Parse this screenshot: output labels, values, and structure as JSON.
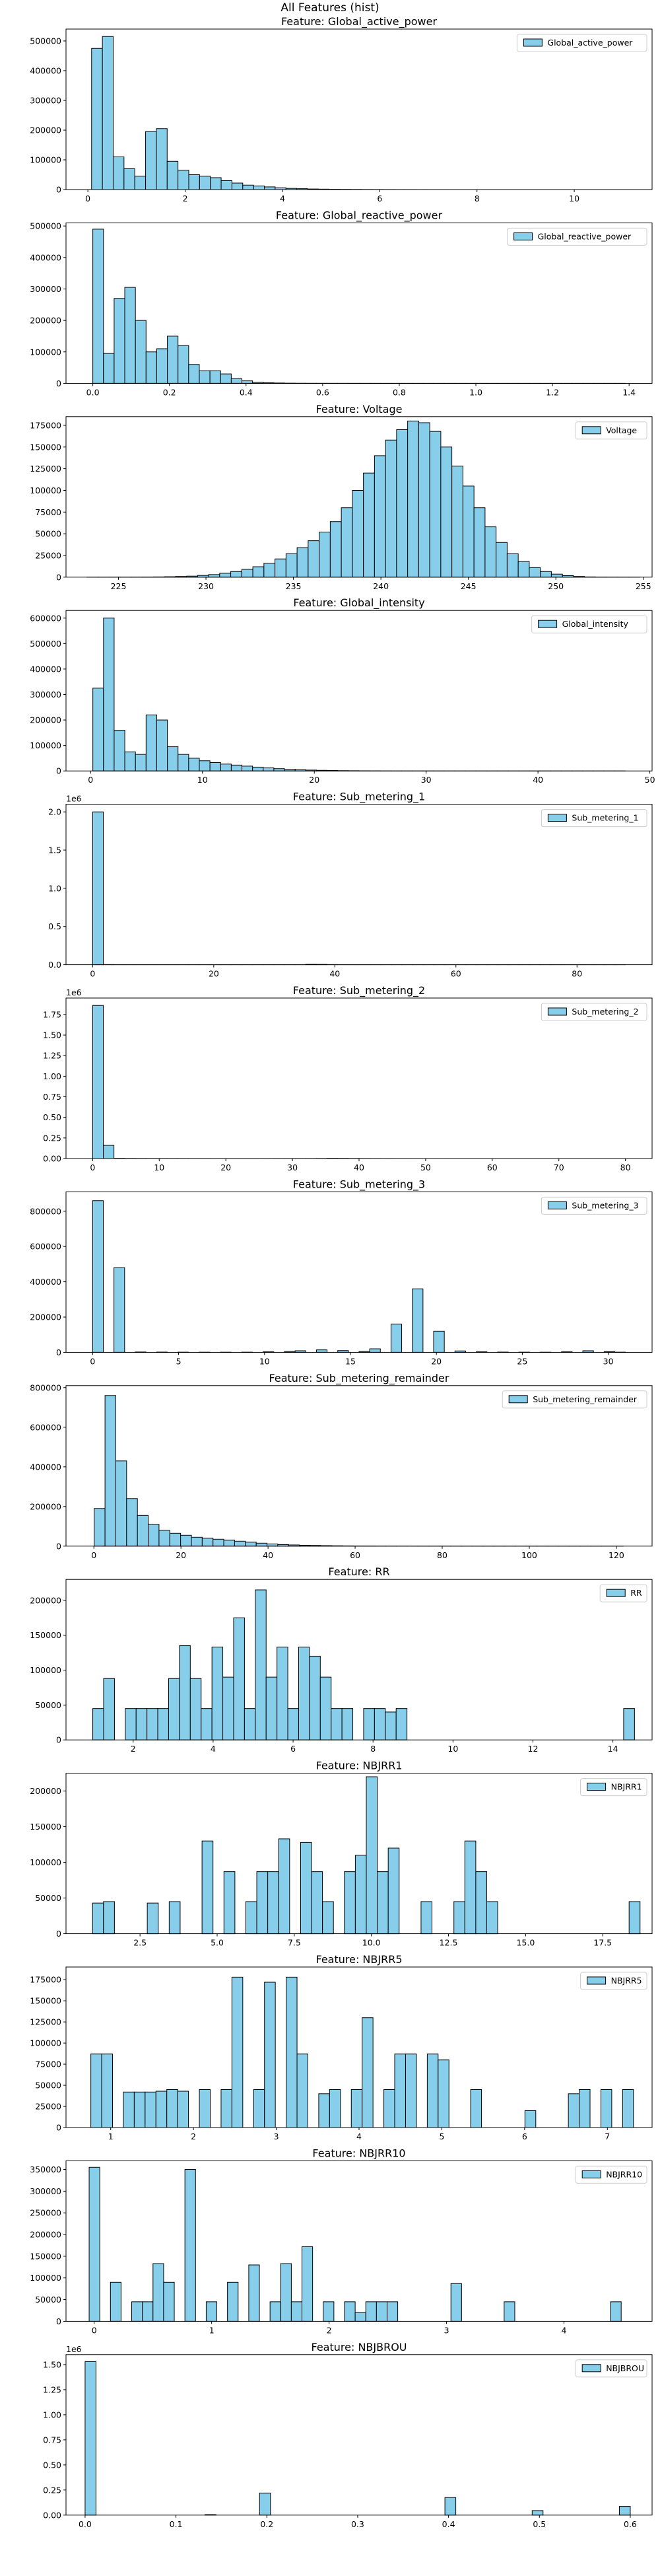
{
  "suptitle": "All Features (hist)",
  "colors": {
    "bar_fill": "#87ceeb",
    "bar_edge": "#000000",
    "axis": "#000000"
  },
  "chart_data": [
    {
      "type": "bar",
      "title": "Feature: Global_active_power",
      "legend": "Global_active_power",
      "legend_loc": "upper right",
      "xlim": [
        -0.45,
        11.6
      ],
      "ylim": [
        0,
        540000
      ],
      "xticks": [
        0,
        2,
        4,
        6,
        8,
        10
      ],
      "xtick_labels": [
        "0",
        "2",
        "4",
        "6",
        "8",
        "10"
      ],
      "yticks": [
        0,
        100000,
        200000,
        300000,
        400000,
        500000
      ],
      "ytick_labels": [
        "0",
        "100000",
        "200000",
        "300000",
        "400000",
        "500000"
      ],
      "y_offset_label": "",
      "bin_start": 0.076,
      "bin_width": 0.222,
      "counts": [
        475000,
        515000,
        110000,
        70000,
        45000,
        195000,
        205000,
        95000,
        65000,
        50000,
        45000,
        40000,
        30000,
        22000,
        15000,
        12000,
        9000,
        6000,
        4000,
        3000,
        2000,
        1500,
        1000,
        800,
        600,
        400,
        300,
        200,
        150,
        100,
        80,
        60,
        40,
        30,
        20,
        15,
        10,
        8,
        6,
        4,
        3,
        2,
        2,
        1,
        1,
        1,
        1,
        1,
        1,
        1
      ]
    },
    {
      "type": "bar",
      "title": "Feature: Global_reactive_power",
      "legend": "Global_reactive_power",
      "legend_loc": "upper right",
      "xlim": [
        -0.07,
        1.46
      ],
      "ylim": [
        0,
        510000
      ],
      "xticks": [
        0,
        0.2,
        0.4,
        0.6,
        0.8,
        1.0,
        1.2,
        1.4
      ],
      "xtick_labels": [
        "0.0",
        "0.2",
        "0.4",
        "0.6",
        "0.8",
        "1.0",
        "1.2",
        "1.4"
      ],
      "yticks": [
        0,
        100000,
        200000,
        300000,
        400000,
        500000
      ],
      "ytick_labels": [
        "0",
        "100000",
        "200000",
        "300000",
        "400000",
        "500000"
      ],
      "y_offset_label": "",
      "bin_start": 0.0,
      "bin_width": 0.0278,
      "counts": [
        490000,
        95000,
        270000,
        305000,
        200000,
        100000,
        110000,
        150000,
        120000,
        60000,
        40000,
        40000,
        30000,
        15000,
        8000,
        4000,
        2000,
        1200,
        600,
        300,
        200,
        120,
        80,
        60,
        40,
        30,
        20,
        15,
        10,
        8,
        6,
        5,
        4,
        3,
        3,
        2,
        2,
        2,
        1,
        1,
        1,
        1,
        1,
        1,
        1,
        1,
        1,
        1,
        1,
        1
      ]
    },
    {
      "type": "bar",
      "title": "Feature: Voltage",
      "legend": "Voltage",
      "legend_loc": "upper right",
      "xlim": [
        222.0,
        255.5
      ],
      "ylim": [
        0,
        185000
      ],
      "xticks": [
        225,
        230,
        235,
        240,
        245,
        250,
        255
      ],
      "xtick_labels": [
        "225",
        "230",
        "235",
        "240",
        "245",
        "250",
        "255"
      ],
      "yticks": [
        0,
        25000,
        50000,
        75000,
        100000,
        125000,
        150000,
        175000
      ],
      "ytick_labels": [
        "0",
        "25000",
        "50000",
        "75000",
        "100000",
        "125000",
        "150000",
        "175000"
      ],
      "y_offset_label": "",
      "bin_start": 223.2,
      "bin_width": 0.632,
      "counts": [
        20,
        30,
        50,
        80,
        120,
        200,
        300,
        500,
        800,
        1200,
        2000,
        3000,
        4500,
        6500,
        9000,
        12000,
        16000,
        21000,
        27000,
        34000,
        42000,
        52000,
        64000,
        80000,
        100000,
        120000,
        140000,
        158000,
        170000,
        180000,
        178000,
        168000,
        150000,
        128000,
        105000,
        80000,
        58000,
        40000,
        27000,
        18000,
        11000,
        6500,
        3500,
        1800,
        800,
        300,
        120,
        50,
        20,
        10
      ]
    },
    {
      "type": "bar",
      "title": "Feature: Global_intensity",
      "legend": "Global_intensity",
      "legend_loc": "upper right",
      "xlim": [
        -2.2,
        50.2
      ],
      "ylim": [
        0,
        630000
      ],
      "xticks": [
        0,
        10,
        20,
        30,
        40,
        50
      ],
      "xtick_labels": [
        "0",
        "10",
        "20",
        "30",
        "40",
        "50"
      ],
      "yticks": [
        0,
        100000,
        200000,
        300000,
        400000,
        500000,
        600000
      ],
      "ytick_labels": [
        "0",
        "100000",
        "200000",
        "300000",
        "400000",
        "500000",
        "600000"
      ],
      "y_offset_label": "",
      "bin_start": 0.2,
      "bin_width": 0.952,
      "counts": [
        325000,
        600000,
        160000,
        75000,
        65000,
        220000,
        200000,
        95000,
        65000,
        50000,
        40000,
        33000,
        27000,
        23000,
        19000,
        15000,
        12000,
        9000,
        7000,
        5000,
        3500,
        2500,
        1800,
        1200,
        900,
        600,
        450,
        300,
        200,
        150,
        100,
        80,
        60,
        40,
        30,
        20,
        15,
        10,
        8,
        6,
        4,
        3,
        2,
        2,
        1,
        1,
        1,
        1,
        1,
        1
      ]
    },
    {
      "type": "bar",
      "title": "Feature: Sub_metering_1",
      "legend": "Sub_metering_1",
      "legend_loc": "upper right",
      "xlim": [
        -4.4,
        92.4
      ],
      "ylim": [
        0,
        2100000
      ],
      "xticks": [
        0,
        20,
        40,
        60,
        80
      ],
      "xtick_labels": [
        "0",
        "20",
        "40",
        "60",
        "80"
      ],
      "yticks": [
        0,
        500000,
        1000000,
        1500000,
        2000000
      ],
      "ytick_labels": [
        "0.0",
        "0.5",
        "1.0",
        "1.5",
        "2.0"
      ],
      "y_offset_label": "1e6",
      "bin_start": 0.0,
      "bin_width": 1.76,
      "counts": [
        2000000,
        2000,
        800,
        600,
        500,
        400,
        300,
        300,
        200,
        200,
        200,
        200,
        300,
        400,
        500,
        600,
        800,
        700,
        600,
        500,
        6000,
        5000,
        2000,
        800,
        400,
        200,
        150,
        100,
        80,
        60,
        50,
        40,
        30,
        25,
        20,
        15,
        12,
        10,
        8,
        6,
        5,
        4,
        3,
        3,
        2,
        2,
        2,
        1,
        1,
        1
      ]
    },
    {
      "type": "bar",
      "title": "Feature: Sub_metering_2",
      "legend": "Sub_metering_2",
      "legend_loc": "upper right",
      "xlim": [
        -4.0,
        84.0
      ],
      "ylim": [
        0,
        1950000
      ],
      "xticks": [
        0,
        10,
        20,
        30,
        40,
        50,
        60,
        70,
        80
      ],
      "xtick_labels": [
        "0",
        "10",
        "20",
        "30",
        "40",
        "50",
        "60",
        "70",
        "80"
      ],
      "yticks": [
        0,
        250000,
        500000,
        750000,
        1000000,
        1250000,
        1500000,
        1750000
      ],
      "ytick_labels": [
        "0.00",
        "0.25",
        "0.50",
        "0.75",
        "1.00",
        "1.25",
        "1.50",
        "1.75"
      ],
      "y_offset_label": "1e6",
      "bin_start": 0.0,
      "bin_width": 1.6,
      "counts": [
        1860000,
        160000,
        3000,
        2000,
        1500,
        1200,
        1000,
        900,
        800,
        700,
        600,
        500,
        500,
        400,
        400,
        400,
        500,
        600,
        700,
        800,
        900,
        1500,
        3000,
        2500,
        1500,
        900,
        600,
        400,
        300,
        200,
        150,
        120,
        100,
        80,
        60,
        50,
        40,
        30,
        25,
        20,
        15,
        12,
        10,
        8,
        6,
        5,
        4,
        3,
        2,
        1
      ]
    },
    {
      "type": "bar",
      "title": "Feature: Sub_metering_3",
      "legend": "Sub_metering_3",
      "legend_loc": "upper right",
      "xlim": [
        -1.55,
        32.55
      ],
      "ylim": [
        0,
        910000
      ],
      "xticks": [
        0,
        5,
        10,
        15,
        20,
        25,
        30
      ],
      "xtick_labels": [
        "0",
        "5",
        "10",
        "15",
        "20",
        "25",
        "30"
      ],
      "yticks": [
        0,
        200000,
        400000,
        600000,
        800000
      ],
      "ytick_labels": [
        "0",
        "200000",
        "400000",
        "600000",
        "800000"
      ],
      "y_offset_label": "",
      "bin_start": 0.0,
      "bin_width": 0.62,
      "counts": [
        860000,
        0,
        480000,
        0,
        2000,
        0,
        1500,
        0,
        1000,
        0,
        800,
        0,
        800,
        0,
        1000,
        0,
        3000,
        0,
        5000,
        9000,
        0,
        14000,
        0,
        10000,
        0,
        5000,
        20000,
        0,
        160000,
        0,
        360000,
        0,
        120000,
        0,
        8000,
        0,
        3000,
        0,
        1500,
        0,
        1000,
        0,
        800,
        0,
        3000,
        0,
        9000,
        0,
        4000,
        1000
      ]
    },
    {
      "type": "bar",
      "title": "Feature: Sub_metering_remainder",
      "legend": "Sub_metering_remainder",
      "legend_loc": "upper right",
      "xlim": [
        -6.4,
        128.2
      ],
      "ylim": [
        0,
        810000
      ],
      "xticks": [
        0,
        20,
        40,
        60,
        80,
        100,
        120
      ],
      "xtick_labels": [
        "0",
        "20",
        "40",
        "60",
        "80",
        "100",
        "120"
      ],
      "yticks": [
        0,
        200000,
        400000,
        600000,
        800000
      ],
      "ytick_labels": [
        "0",
        "200000",
        "400000",
        "600000",
        "800000"
      ],
      "y_offset_label": "",
      "bin_start": -2.4,
      "bin_width": 2.48,
      "counts": [
        0,
        190000,
        760000,
        430000,
        240000,
        155000,
        110000,
        80000,
        65000,
        55000,
        45000,
        40000,
        35000,
        30000,
        25000,
        20000,
        15000,
        11000,
        8000,
        6000,
        4500,
        3500,
        2500,
        1800,
        1300,
        900,
        700,
        500,
        400,
        300,
        200,
        150,
        120,
        100,
        80,
        60,
        40,
        30,
        20,
        15,
        10,
        8,
        6,
        4,
        3,
        2,
        2,
        1,
        1,
        1
      ]
    },
    {
      "type": "bar",
      "title": "Feature: RR",
      "legend": "RR",
      "legend_loc": "upper right",
      "xlim": [
        0.32,
        14.98
      ],
      "ylim": [
        0,
        230000
      ],
      "xticks": [
        2,
        4,
        6,
        8,
        10,
        12,
        14
      ],
      "xtick_labels": [
        "2",
        "4",
        "6",
        "8",
        "10",
        "12",
        "14"
      ],
      "yticks": [
        0,
        50000,
        100000,
        150000,
        200000
      ],
      "ytick_labels": [
        "0",
        "50000",
        "100000",
        "150000",
        "200000"
      ],
      "y_offset_label": "",
      "bin_start": 0.99,
      "bin_width": 0.271,
      "counts": [
        45000,
        88000,
        0,
        45000,
        45000,
        45000,
        45000,
        88000,
        135000,
        88000,
        45000,
        133000,
        90000,
        175000,
        45000,
        215000,
        90000,
        133000,
        45000,
        133000,
        120000,
        90000,
        45000,
        45000,
        0,
        45000,
        45000,
        40000,
        45000,
        0,
        0,
        0,
        0,
        0,
        0,
        0,
        0,
        0,
        0,
        0,
        0,
        0,
        0,
        0,
        0,
        0,
        0,
        0,
        0,
        45000
      ]
    },
    {
      "type": "bar",
      "title": "Feature: NBJRR1",
      "legend": "NBJRR1",
      "legend_loc": "upper right",
      "xlim": [
        0.1,
        19.1
      ],
      "ylim": [
        0,
        225000
      ],
      "xticks": [
        2.5,
        5.0,
        7.5,
        10.0,
        12.5,
        15.0,
        17.5
      ],
      "xtick_labels": [
        "2.5",
        "5.0",
        "7.5",
        "10.0",
        "12.5",
        "15.0",
        "17.5"
      ],
      "yticks": [
        0,
        50000,
        100000,
        150000,
        200000
      ],
      "ytick_labels": [
        "0",
        "50000",
        "100000",
        "150000",
        "200000"
      ],
      "y_offset_label": "",
      "bin_start": 0.96,
      "bin_width": 0.355,
      "counts": [
        43000,
        45000,
        0,
        0,
        0,
        43000,
        0,
        45000,
        0,
        0,
        130000,
        0,
        87000,
        0,
        45000,
        87000,
        87000,
        133000,
        0,
        128000,
        87000,
        45000,
        0,
        87000,
        110000,
        220000,
        87000,
        120000,
        0,
        0,
        45000,
        0,
        0,
        45000,
        130000,
        87000,
        45000,
        0,
        0,
        0,
        0,
        0,
        0,
        0,
        0,
        0,
        0,
        0,
        0,
        45000
      ]
    },
    {
      "type": "bar",
      "title": "Feature: NBJRR5",
      "legend": "NBJRR5",
      "legend_loc": "upper right",
      "xlim": [
        0.46,
        7.54
      ],
      "ylim": [
        0,
        190000
      ],
      "xticks": [
        1,
        2,
        3,
        4,
        5,
        6,
        7
      ],
      "xtick_labels": [
        "1",
        "2",
        "3",
        "4",
        "5",
        "6",
        "7"
      ],
      "yticks": [
        0,
        25000,
        50000,
        75000,
        100000,
        125000,
        150000,
        175000
      ],
      "ytick_labels": [
        "0",
        "25000",
        "50000",
        "75000",
        "100000",
        "125000",
        "150000",
        "175000"
      ],
      "y_offset_label": "",
      "bin_start": 0.76,
      "bin_width": 0.1311,
      "counts": [
        87000,
        87000,
        0,
        42000,
        42000,
        42000,
        43000,
        45000,
        43000,
        0,
        45000,
        0,
        45000,
        178000,
        0,
        45000,
        172000,
        0,
        178000,
        87000,
        0,
        40000,
        45000,
        0,
        45000,
        130000,
        0,
        45000,
        87000,
        87000,
        0,
        87000,
        80000,
        0,
        0,
        45000,
        0,
        0,
        0,
        0,
        20000,
        0,
        0,
        0,
        40000,
        45000,
        0,
        45000,
        0,
        45000
      ]
    },
    {
      "type": "bar",
      "title": "Feature: NBJRR10",
      "legend": "NBJRR10",
      "legend_loc": "upper right",
      "xlim": [
        -0.24,
        4.75
      ],
      "ylim": [
        0,
        370000
      ],
      "xticks": [
        0,
        1,
        2,
        3,
        4
      ],
      "xtick_labels": [
        "0",
        "1",
        "2",
        "3",
        "4"
      ],
      "yticks": [
        0,
        50000,
        100000,
        150000,
        200000,
        250000,
        300000,
        350000
      ],
      "ytick_labels": [
        "0",
        "50000",
        "100000",
        "150000",
        "200000",
        "250000",
        "300000",
        "350000"
      ],
      "y_offset_label": "",
      "bin_start": -0.043,
      "bin_width": 0.0906,
      "counts": [
        355000,
        0,
        90000,
        0,
        45000,
        45000,
        133000,
        90000,
        0,
        350000,
        0,
        45000,
        0,
        90000,
        0,
        130000,
        0,
        45000,
        133000,
        45000,
        172000,
        0,
        45000,
        0,
        45000,
        20000,
        45000,
        45000,
        45000,
        0,
        0,
        0,
        0,
        0,
        87000,
        0,
        0,
        0,
        0,
        45000,
        0,
        0,
        0,
        0,
        0,
        0,
        0,
        0,
        0,
        45000
      ]
    },
    {
      "type": "bar",
      "title": "Feature: NBJBROU",
      "legend": "NBJBROU",
      "legend_loc": "upper right",
      "xlim": [
        -0.021,
        0.624
      ],
      "ylim": [
        0,
        1600000
      ],
      "xticks": [
        0.0,
        0.1,
        0.2,
        0.3,
        0.4,
        0.5,
        0.6
      ],
      "xtick_labels": [
        "0.0",
        "0.1",
        "0.2",
        "0.3",
        "0.4",
        "0.5",
        "0.6"
      ],
      "yticks": [
        0,
        250000,
        500000,
        750000,
        1000000,
        1250000,
        1500000
      ],
      "ytick_labels": [
        "0.00",
        "0.25",
        "0.50",
        "0.75",
        "1.00",
        "1.25",
        "1.50"
      ],
      "y_offset_label": "1e6",
      "bin_start": 0.0,
      "bin_width": 0.012,
      "counts": [
        1530000,
        0,
        0,
        0,
        0,
        0,
        0,
        0,
        0,
        0,
        0,
        5000,
        0,
        0,
        0,
        0,
        220000,
        0,
        0,
        0,
        0,
        0,
        0,
        0,
        0,
        0,
        0,
        0,
        0,
        0,
        0,
        0,
        0,
        175000,
        0,
        0,
        0,
        0,
        0,
        0,
        0,
        45000,
        0,
        0,
        0,
        0,
        0,
        0,
        0,
        87000
      ]
    }
  ]
}
